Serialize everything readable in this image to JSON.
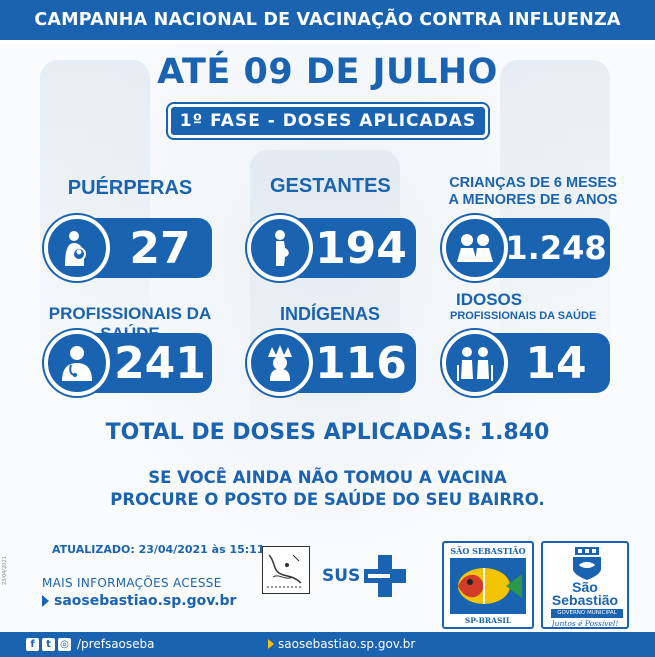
{
  "header": {
    "title": "CAMPANHA NACIONAL DE VACINAÇÃO CONTRA INFLUENZA"
  },
  "date_title": "ATÉ 09 DE JULHO",
  "phase_label": "1º FASE - DOSES APLICADAS",
  "categories": [
    {
      "label": "PUÉRPERAS",
      "value": "27",
      "icon": "mother-baby-icon"
    },
    {
      "label": "GESTANTES",
      "value": "194",
      "icon": "pregnant-woman-icon"
    },
    {
      "label_line1": "CRIANÇAS DE 6 MESES",
      "label_line2": "A MENORES DE 6 ANOS",
      "value": "1.248",
      "icon": "children-icon"
    },
    {
      "label": "PROFISSIONAIS DA SAÚDE",
      "value": "241",
      "icon": "doctor-icon"
    },
    {
      "label": "INDÍGENAS",
      "value": "116",
      "icon": "indigenous-icon"
    },
    {
      "label_line1": "IDOSOS",
      "label_line2": "PROFISSIONAIS DA SAÚDE",
      "value": "14",
      "icon": "elderly-icon"
    }
  ],
  "total": "TOTAL DE DOSES APLICADAS: 1.840",
  "message": {
    "line1": "SE VOCÊ AINDA NÃO TOMOU A VACINA",
    "line2": "PROCURE O POSTO DE SAÚDE DO SEU BAIRRO."
  },
  "updated": "ATUALIZADO: 23/04/2021 às 15:11",
  "more_info": "MAIS INFORMAÇÕES ACESSE",
  "website": "saosebastiao.sp.gov.br",
  "vertical_date": "23/04/2021",
  "sus_label": "SUS",
  "crest": {
    "top": "SÃO SEBASTIÃO",
    "bottom": "SP-BRASIL"
  },
  "gov_logo": {
    "name_line1": "São",
    "name_line2": "Sebastião",
    "subtitle": "GOVERNO MUNICIPAL",
    "slogan": "Juntos é Possível!"
  },
  "footer": {
    "social_handle": "/prefsaoseba",
    "website": "saosebastiao.sp.gov.br"
  },
  "colors": {
    "primary": "#1a63b0",
    "accent": "#f5c400",
    "white": "#ffffff"
  }
}
